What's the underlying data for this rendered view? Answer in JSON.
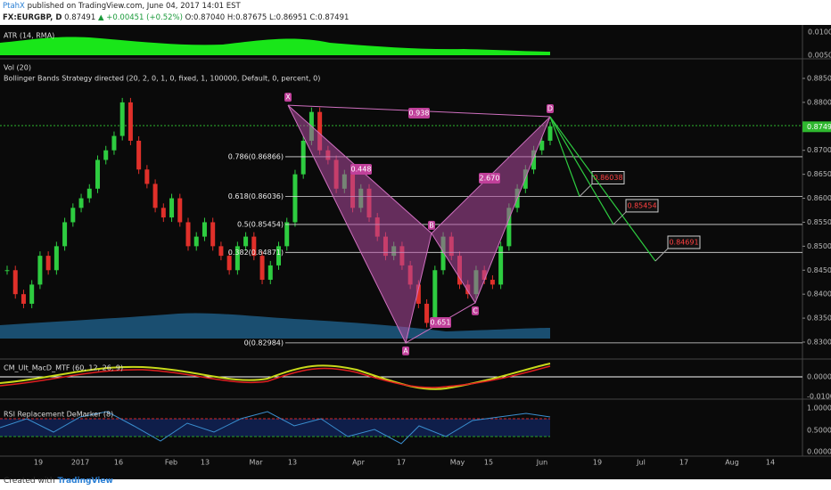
{
  "header": {
    "publisher": "PtahX",
    "published": "published on TradingView.com, June 04, 2017 14:01 EST",
    "symbol": "FX:EURGBP, D",
    "price": "0.87491",
    "change": "▲ +0.00451 (+0.52%)",
    "ohlc": "O:0.87040 H:0.87675 L:0.86951 C:0.87491"
  },
  "atr": {
    "label": "ATR (14, RMA)",
    "ticks": [
      "0.0100",
      "0.0050"
    ]
  },
  "price_pane": {
    "labels": [
      "Vol (20)",
      "Bollinger Bands Strategy directed (20, 2, 0, 1, 0, fixed, 1, 100000, Default, 0, percent, 0)"
    ],
    "yticks": [
      {
        "value": 0.885,
        "label": "0.88500"
      },
      {
        "value": 0.88,
        "label": "0.88000"
      },
      {
        "value": 0.87,
        "label": "0.87000"
      },
      {
        "value": 0.865,
        "label": "0.86500"
      },
      {
        "value": 0.86,
        "label": "0.86000"
      },
      {
        "value": 0.855,
        "label": "0.85500"
      },
      {
        "value": 0.85,
        "label": "0.85000"
      },
      {
        "value": 0.845,
        "label": "0.84500"
      },
      {
        "value": 0.84,
        "label": "0.84000"
      },
      {
        "value": 0.835,
        "label": "0.83500"
      },
      {
        "value": 0.83,
        "label": "0.83000"
      }
    ],
    "last": {
      "value": 0.87491,
      "label": "0.87491"
    }
  },
  "macd": {
    "label": "CM_Ult_MacD_MTF (60, 12, 26, 9)",
    "ticks": [
      "0.0000",
      "-0.0100"
    ]
  },
  "rsi": {
    "label": "RSI Replacement DeMarker (8)",
    "ticks": [
      "1.0000",
      "0.5000",
      "0.0000"
    ]
  },
  "x_axis": [
    "19",
    "2017",
    "16",
    "Feb",
    "13",
    "Mar",
    "13",
    "Apr",
    "17",
    "May",
    "15",
    "Jun",
    "19",
    "Jul",
    "17",
    "Aug",
    "14"
  ],
  "fib_levels": [
    {
      "label": "0.786(0.86866)",
      "price": 0.86866
    },
    {
      "label": "0.618(0.86036)",
      "price": 0.86036
    },
    {
      "label": "0.5(0.85454)",
      "price": 0.85454
    },
    {
      "label": "0.382(0.84871)",
      "price": 0.84871
    },
    {
      "label": "0(0.82984)",
      "price": 0.82984
    }
  ],
  "pattern": {
    "points": [
      {
        "label": "X",
        "price": 0.8794
      },
      {
        "label": "A",
        "price": 0.82984
      },
      {
        "label": "B",
        "price": 0.8527
      },
      {
        "label": "C",
        "price": 0.8382
      },
      {
        "label": "D",
        "price": 0.877
      }
    ],
    "ratios": [
      "0.938",
      "0.448",
      "2.670",
      "0.651"
    ]
  },
  "targets": [
    {
      "label": "0.86038",
      "price": 0.86038
    },
    {
      "label": "0.85454",
      "price": 0.85454
    },
    {
      "label": "0.84691",
      "price": 0.84691
    }
  ],
  "price_closes": [
    0.845,
    0.84,
    0.838,
    0.842,
    0.848,
    0.845,
    0.85,
    0.855,
    0.858,
    0.86,
    0.862,
    0.868,
    0.87,
    0.873,
    0.88,
    0.872,
    0.866,
    0.863,
    0.858,
    0.856,
    0.86,
    0.855,
    0.85,
    0.852,
    0.855,
    0.85,
    0.848,
    0.845,
    0.85,
    0.852,
    0.848,
    0.843,
    0.846,
    0.85,
    0.855,
    0.865,
    0.872,
    0.878,
    0.87,
    0.868,
    0.862,
    0.865,
    0.858,
    0.862,
    0.856,
    0.852,
    0.848,
    0.85,
    0.846,
    0.842,
    0.838,
    0.834,
    0.845,
    0.852,
    0.848,
    0.842,
    0.84,
    0.845,
    0.843,
    0.842,
    0.85,
    0.858,
    0.862,
    0.866,
    0.87,
    0.872,
    0.875
  ],
  "footer": {
    "created": "Created with",
    "brand": "TradingView"
  }
}
